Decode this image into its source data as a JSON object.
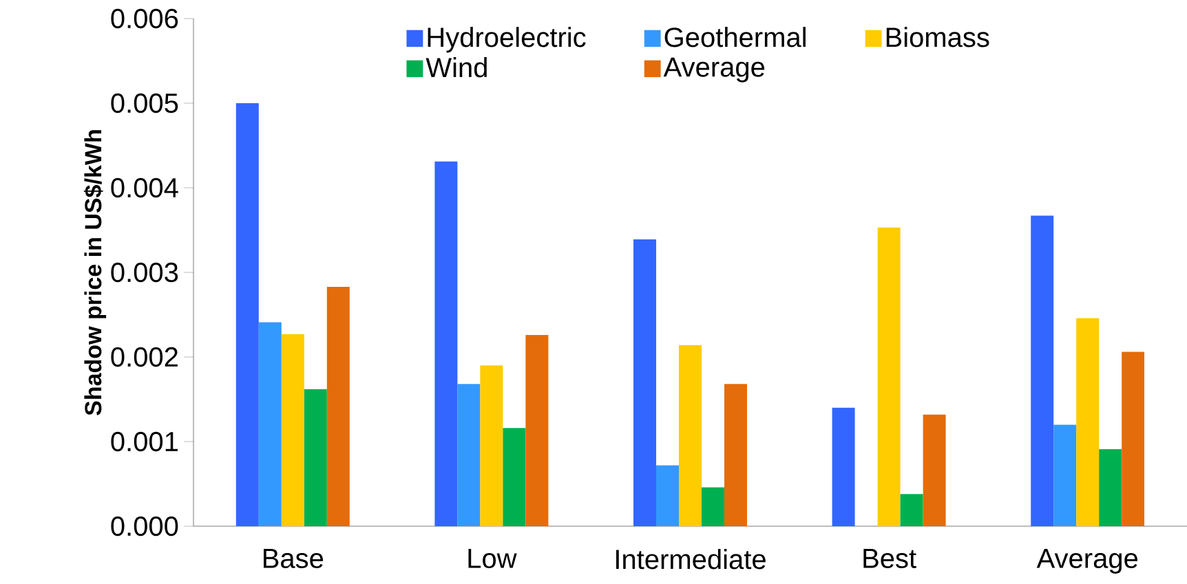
{
  "chart_data": {
    "type": "bar",
    "ylabel": "Shadow price in US$/kWh",
    "categories": [
      "Base",
      "Low",
      "Intermediate",
      "Best",
      "Average"
    ],
    "series": [
      {
        "name": "Hydroelectric",
        "color": "#3366ff",
        "values": [
          0.005,
          0.00431,
          0.00339,
          0.0014,
          0.00367
        ]
      },
      {
        "name": "Geothermal",
        "color": "#3399ff",
        "values": [
          0.00241,
          0.00168,
          0.00072,
          null,
          0.0012
        ]
      },
      {
        "name": "Biomass",
        "color": "#ffcc00",
        "values": [
          0.00227,
          0.0019,
          0.00214,
          0.00353,
          0.00246
        ]
      },
      {
        "name": "Wind",
        "color": "#00b050",
        "values": [
          0.00162,
          0.00116,
          0.00046,
          0.00038,
          0.00091
        ]
      },
      {
        "name": "Average",
        "color": "#e46c0a",
        "values": [
          0.00283,
          0.00226,
          0.00168,
          0.00132,
          0.00206
        ]
      }
    ],
    "ylim": [
      0,
      0.006
    ],
    "yticks": [
      {
        "value": 0,
        "label": "0.000"
      },
      {
        "value": 0.001,
        "label": "0.001"
      },
      {
        "value": 0.002,
        "label": "0.002"
      },
      {
        "value": 0.003,
        "label": "0.003"
      },
      {
        "value": 0.004,
        "label": "0.004"
      },
      {
        "value": 0.005,
        "label": "0.005"
      },
      {
        "value": 0.006,
        "label": "0.006"
      }
    ],
    "grid": false,
    "legend": "top"
  }
}
